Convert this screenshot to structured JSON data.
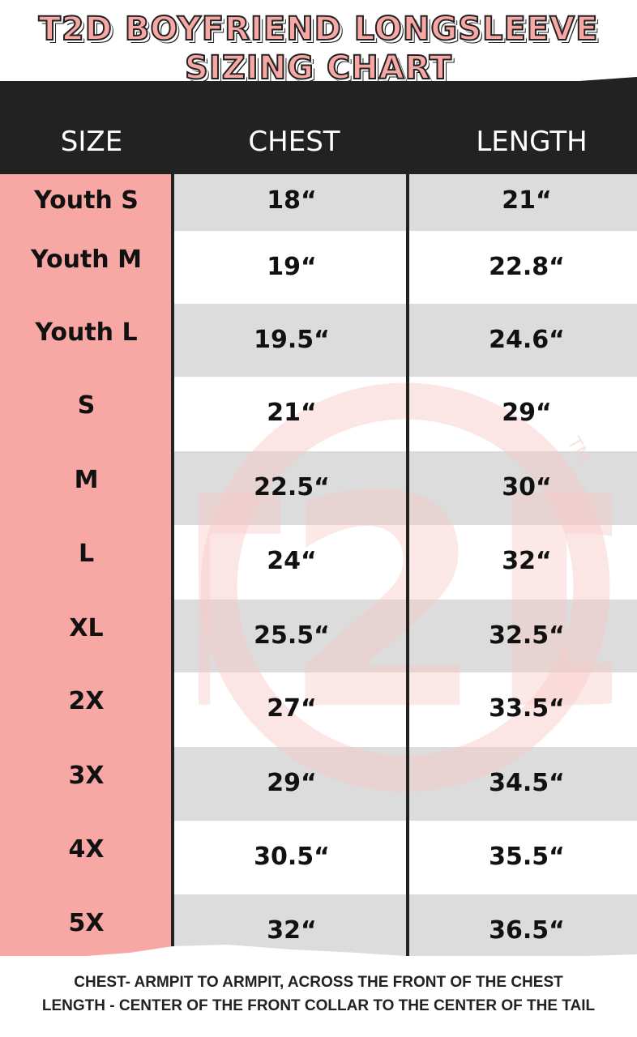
{
  "title": {
    "line1": "T2D BOYFRIEND LONGSLEEVE",
    "line2": "SIZING CHART"
  },
  "colors": {
    "accent": "#f7a7a4",
    "header_bg": "#222222",
    "stripe": "#dcdcdc"
  },
  "watermark": {
    "logo": "T2D",
    "mark": "TM"
  },
  "table": {
    "headers": [
      "SIZE",
      "CHEST",
      "LENGTH"
    ],
    "rows": [
      [
        "Youth S",
        "18“",
        "21“"
      ],
      [
        "Youth M",
        "19“",
        "22.8“"
      ],
      [
        "Youth L",
        "19.5“",
        "24.6“"
      ],
      [
        "S",
        "21“",
        "29“"
      ],
      [
        "M",
        "22.5“",
        "30“"
      ],
      [
        "L",
        "24“",
        "32“"
      ],
      [
        "XL",
        "25.5“",
        "32.5“"
      ],
      [
        "2X",
        "27“",
        "33.5“"
      ],
      [
        "3X",
        "29“",
        "34.5“"
      ],
      [
        "4X",
        "30.5“",
        "35.5“"
      ],
      [
        "5X",
        "32“",
        "36.5“"
      ]
    ]
  },
  "footer": {
    "chest_note": "CHEST- ARMPIT TO ARMPIT, ACROSS THE FRONT OF THE CHEST",
    "length_note": "LENGTH - CENTER OF THE FRONT COLLAR TO THE CENTER OF THE TAIL"
  }
}
